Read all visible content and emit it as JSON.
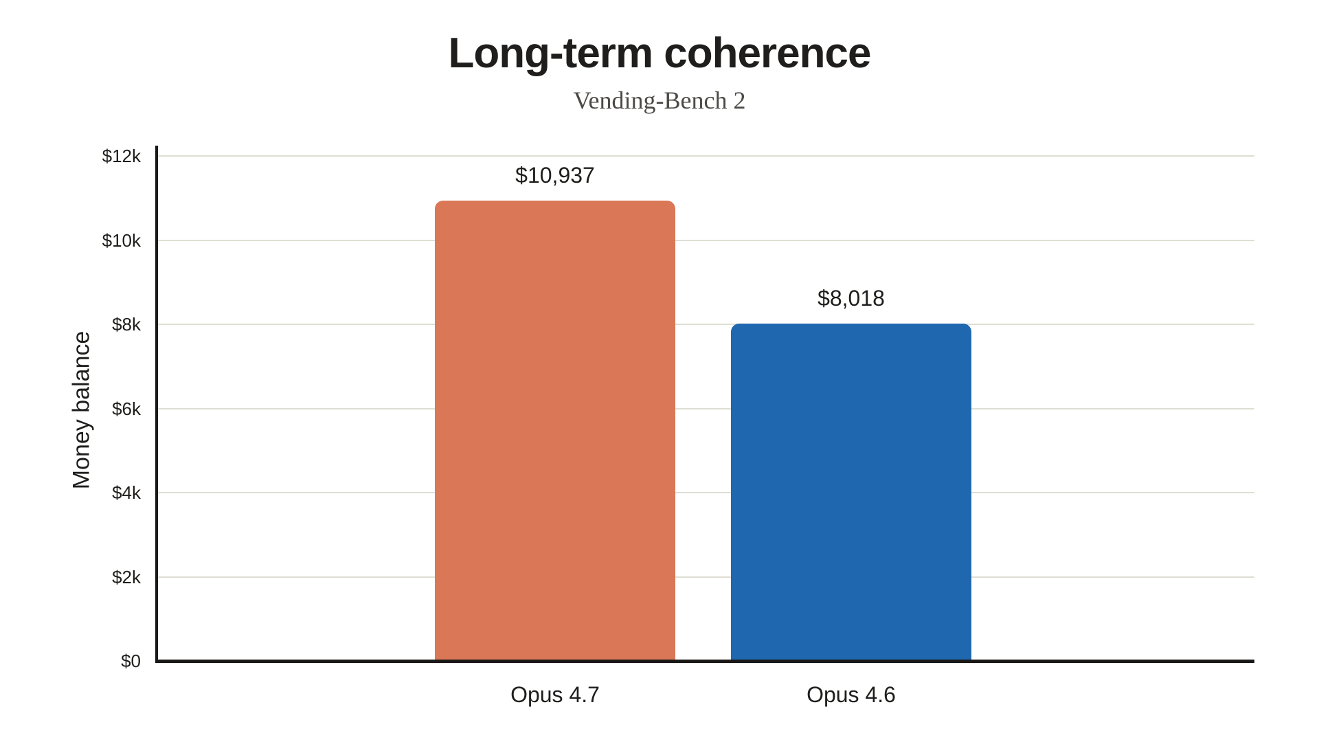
{
  "header": {
    "title": "Long-term coherence",
    "subtitle": "Vending-Bench 2"
  },
  "chart_data": {
    "type": "bar",
    "title": "Long-term coherence",
    "subtitle": "Vending-Bench 2",
    "xlabel": "",
    "ylabel": "Money balance",
    "categories": [
      "Opus 4.7",
      "Opus 4.6"
    ],
    "series": [
      {
        "name": "Money balance",
        "values": [
          10937,
          8018
        ]
      }
    ],
    "value_labels": [
      "$10,937",
      "$8,018"
    ],
    "bar_colors": [
      "#d97757",
      "#1f67af"
    ],
    "ylim": [
      0,
      12250
    ],
    "yticks": [
      {
        "value": 0,
        "label": "$0"
      },
      {
        "value": 2000,
        "label": "$2k"
      },
      {
        "value": 4000,
        "label": "$4k"
      },
      {
        "value": 6000,
        "label": "$6k"
      },
      {
        "value": 8000,
        "label": "$8k"
      },
      {
        "value": 10000,
        "label": "$10k"
      },
      {
        "value": 12000,
        "label": "$12k"
      }
    ],
    "grid": true,
    "legend": "none"
  },
  "colors": {
    "title_text": "#1f1e1c",
    "subtitle_text": "#4c4a45",
    "tick_text": "#1f1e1c",
    "grid_line": "#deded3",
    "axis_line": "#1a1917",
    "bar_opus_47": "#d97757",
    "bar_opus_46": "#1f67af",
    "background": "#ffffff"
  }
}
